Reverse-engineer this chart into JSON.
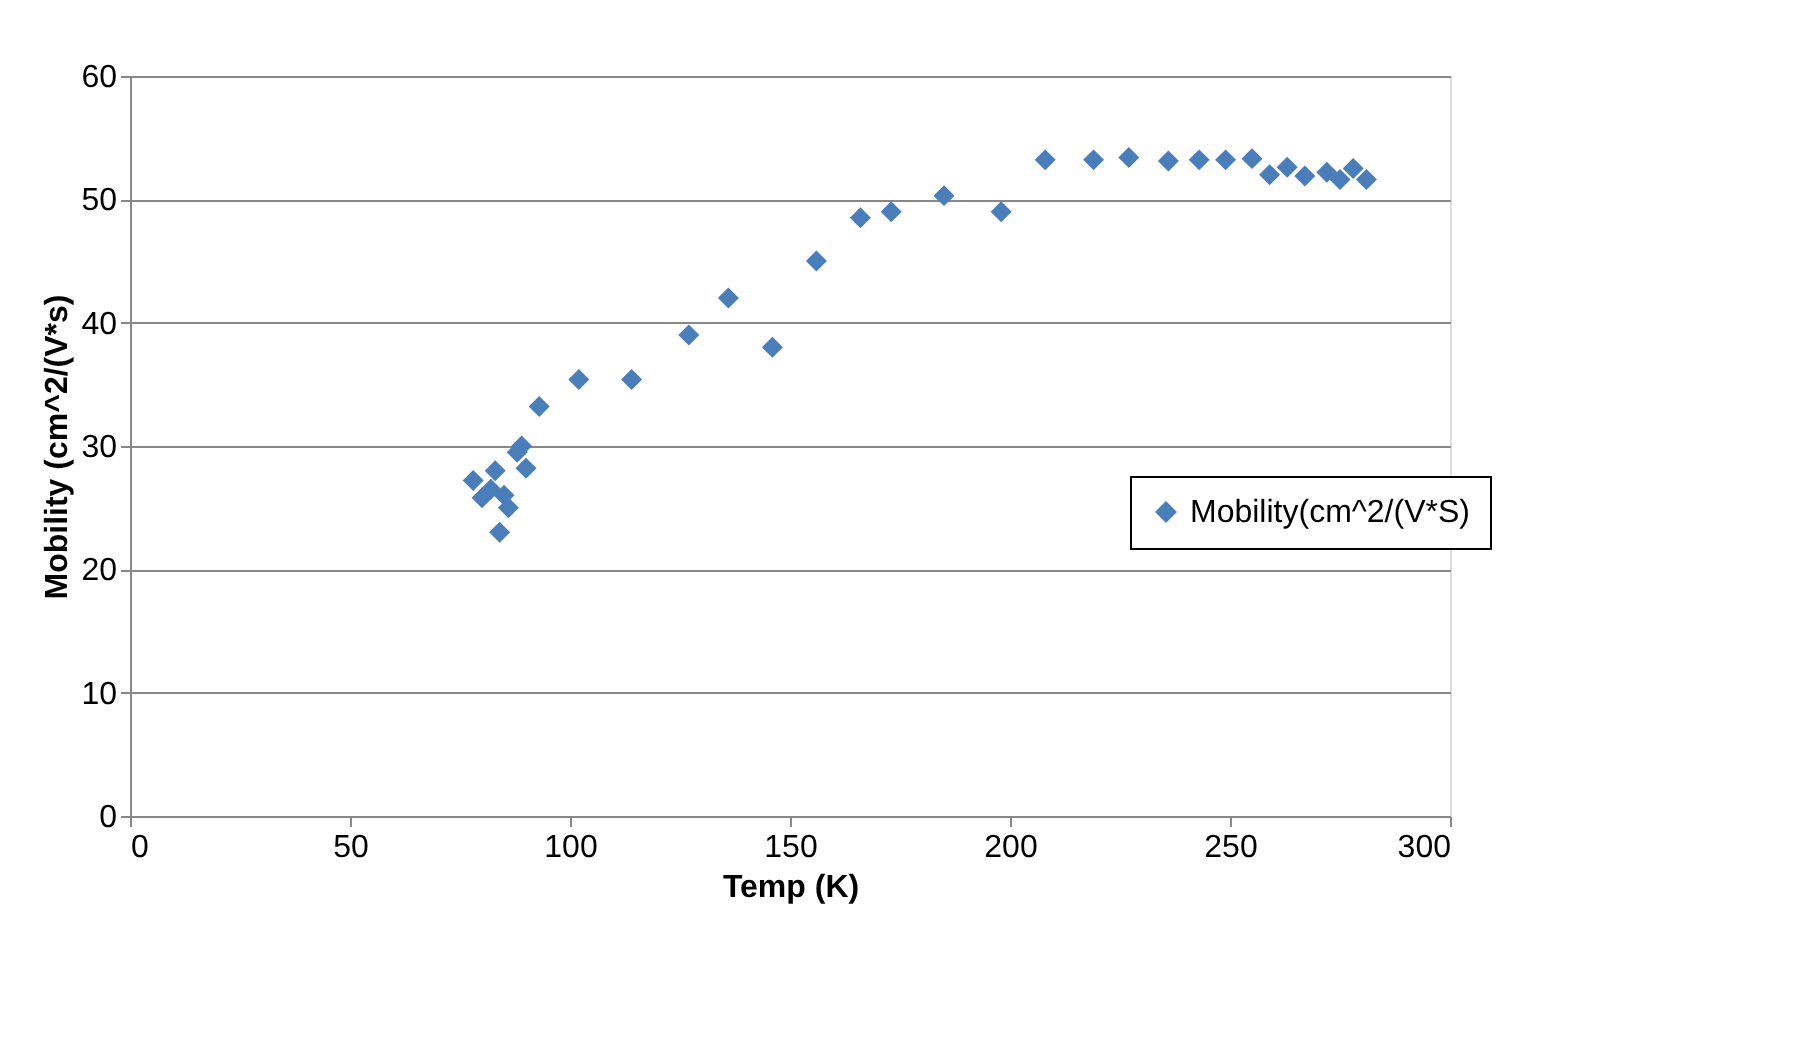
{
  "chart_data": {
    "type": "scatter",
    "xlabel": "Temp (K)",
    "ylabel": "Mobility (cm^2/(V*s)",
    "xlim": [
      0,
      300
    ],
    "xticks": [
      0,
      50,
      100,
      150,
      200,
      250,
      300
    ],
    "ylim": [
      0,
      60
    ],
    "yticks": [
      0,
      10,
      20,
      30,
      40,
      50,
      60
    ],
    "grid": "y",
    "legend": "right",
    "marker": "diamond",
    "series": [
      {
        "name": "Mobility(cm^2/(V*S)",
        "color": "#4a7ebb",
        "x": [
          78,
          80,
          82,
          83,
          84,
          85,
          86,
          88,
          89,
          90,
          93,
          102,
          114,
          127,
          136,
          146,
          156,
          166,
          173,
          185,
          198,
          208,
          219,
          227,
          236,
          243,
          249,
          255,
          259,
          263,
          267,
          272,
          275,
          278,
          281
        ],
        "values": [
          27.2,
          25.8,
          26.5,
          28,
          23,
          26,
          25,
          29.5,
          30,
          28.2,
          33.2,
          35.4,
          35.4,
          39,
          42,
          38,
          45,
          48.5,
          49,
          50.3,
          49,
          53.2,
          53.2,
          53.4,
          53.1,
          53.2,
          53.2,
          53.3,
          52,
          52.6,
          51.9,
          52.2,
          51.6,
          52.5,
          51.6
        ]
      }
    ]
  }
}
